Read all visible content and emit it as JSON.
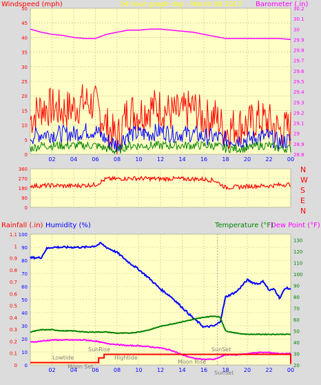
{
  "colors": {
    "background": "#dcdcdc",
    "plot_bg": "#ffffc6",
    "grid": "#b9b98c",
    "wind": "#ff0000",
    "wind_avg": "#0000ff",
    "wind_min": "#008000",
    "barometer": "#ff00ff",
    "direction": "#ff0000",
    "rainfall": "#ff0000",
    "humidity": "#0000ff",
    "temperature": "#008000",
    "dewpoint": "#ff00ff",
    "title": "#ffff00",
    "events": "#808080"
  },
  "chart_data": [
    {
      "type": "line",
      "title": "24 hour graph day : March 08 2017",
      "ylabel_left": "Windspeed (mph)",
      "ylabel_right": "Barometer (.in)",
      "x_ticks": [
        "02",
        "04",
        "06",
        "08",
        "10",
        "12",
        "14",
        "16",
        "18",
        "20",
        "22",
        "00"
      ],
      "yticks_left": [
        0,
        5,
        10,
        15,
        20,
        25,
        30,
        35,
        40,
        45,
        50
      ],
      "ylim_left": [
        0,
        50
      ],
      "yticks_right": [
        "28.8",
        "28.9",
        "29",
        "29.1",
        "29.2",
        "29.3",
        "29.4",
        "29.5",
        "29.6",
        "29.7",
        "29.8",
        "29.9",
        "30",
        "30.1",
        "30.2"
      ],
      "ylim_right": [
        28.8,
        30.2
      ],
      "grid": true,
      "series": [
        {
          "name": "wind_gust",
          "axis": "left",
          "x": [
            0,
            1,
            2,
            3,
            4,
            5,
            6,
            7,
            8,
            9,
            10,
            11,
            12,
            13,
            14,
            15,
            16,
            17,
            18,
            19,
            20,
            21,
            22,
            23,
            24
          ],
          "y": [
            12,
            16,
            16,
            15,
            16,
            18,
            17,
            10,
            5,
            15,
            14,
            16,
            16,
            14,
            14,
            16,
            12,
            13,
            8,
            10,
            10,
            12,
            11,
            8,
            9
          ]
        },
        {
          "name": "wind_avg",
          "axis": "left",
          "x": [
            0,
            1,
            2,
            3,
            4,
            5,
            6,
            7,
            8,
            9,
            10,
            11,
            12,
            13,
            14,
            15,
            16,
            17,
            18,
            19,
            20,
            21,
            22,
            23,
            24
          ],
          "y": [
            6,
            7,
            7,
            7,
            7,
            8,
            8,
            5,
            3,
            7,
            7,
            7,
            8,
            7,
            7,
            7,
            6,
            6,
            5,
            5,
            5,
            6,
            6,
            4,
            5
          ]
        },
        {
          "name": "wind_min",
          "axis": "left",
          "x": [
            0,
            1,
            2,
            3,
            4,
            5,
            6,
            7,
            8,
            9,
            10,
            11,
            12,
            13,
            14,
            15,
            16,
            17,
            18,
            19,
            20,
            21,
            22,
            23,
            24
          ],
          "y": [
            2,
            3,
            3,
            3,
            3,
            3,
            3,
            2,
            1,
            3,
            3,
            3,
            3,
            3,
            3,
            3,
            3,
            3,
            2,
            2,
            2,
            3,
            3,
            2,
            2
          ]
        },
        {
          "name": "barometer",
          "axis": "right",
          "x": [
            0,
            1,
            2,
            3,
            4,
            5,
            6,
            7,
            8,
            9,
            10,
            11,
            12,
            13,
            14,
            15,
            16,
            17,
            18,
            19,
            20,
            21,
            22,
            23,
            24
          ],
          "y": [
            30.0,
            29.97,
            29.95,
            29.94,
            29.92,
            29.91,
            29.91,
            29.95,
            29.97,
            29.99,
            29.99,
            30.0,
            30.0,
            29.99,
            29.98,
            29.97,
            29.95,
            29.93,
            29.91,
            29.91,
            29.91,
            29.91,
            29.91,
            29.91,
            29.9
          ]
        }
      ]
    },
    {
      "type": "line",
      "ylabel_right": [
        "N",
        "W",
        "S",
        "E",
        "N"
      ],
      "yticks": [
        0,
        90,
        180,
        270,
        360
      ],
      "ylim": [
        0,
        360
      ],
      "grid": true,
      "series": [
        {
          "name": "wind_direction",
          "x": [
            0,
            1,
            2,
            3,
            4,
            5,
            6,
            7,
            8,
            9,
            10,
            11,
            12,
            13,
            14,
            15,
            16,
            17,
            18,
            19,
            20,
            21,
            22,
            23,
            24
          ],
          "y": [
            200,
            200,
            205,
            200,
            200,
            205,
            210,
            265,
            265,
            270,
            270,
            268,
            265,
            268,
            265,
            265,
            262,
            250,
            185,
            190,
            195,
            200,
            200,
            210,
            215
          ]
        }
      ]
    },
    {
      "type": "line",
      "ylabel_left_1": "Rainfall (.in)",
      "ylabel_left_2": "Humidity (%)",
      "ylabel_right_1": "Temperature (°F)",
      "ylabel_right_2": "Dew Point (°F)",
      "yticks_humidity": [
        0,
        10,
        20,
        30,
        40,
        50,
        60,
        70,
        80,
        90,
        100
      ],
      "ylim_humidity": [
        0,
        100
      ],
      "yticks_rain": [
        "0",
        "0.1",
        "0.2",
        "0.3",
        "0.4",
        "0.5",
        "0.6",
        "0.7",
        "0.8",
        "0.9",
        "1",
        "1.1"
      ],
      "ylim_rain": [
        0,
        1.1
      ],
      "yticks_temp": [
        20,
        30,
        40,
        50,
        60,
        70,
        80,
        90,
        100,
        110,
        120,
        130
      ],
      "ylim_temp": [
        20,
        135
      ],
      "x_ticks": [
        "02",
        "04",
        "06",
        "08",
        "10",
        "12",
        "14",
        "16",
        "18",
        "20",
        "22",
        "00"
      ],
      "grid": true,
      "series": [
        {
          "name": "humidity",
          "axis": "humidity",
          "x": [
            0,
            1,
            1.5,
            2,
            3,
            4,
            5,
            6,
            6.5,
            7,
            8,
            9,
            10,
            11,
            12,
            13,
            14,
            15,
            16,
            17,
            17.5,
            18,
            19,
            20,
            20.5,
            21,
            21.5,
            22,
            22.5,
            23,
            23.5,
            24
          ],
          "y": [
            82,
            82,
            89,
            90,
            90,
            90,
            90,
            91,
            93,
            90,
            86,
            79,
            73,
            66,
            58,
            52,
            44,
            36,
            29,
            30,
            33,
            52,
            56,
            65,
            63,
            62,
            64,
            57,
            58,
            51,
            59,
            58
          ]
        },
        {
          "name": "temperature",
          "axis": "temp",
          "x": [
            0,
            1,
            2,
            3,
            4,
            5,
            6,
            7,
            8,
            9,
            10,
            11,
            12,
            13,
            14,
            15,
            16,
            17,
            17.5,
            18,
            19,
            20,
            21,
            22,
            23,
            24
          ],
          "y": [
            49,
            51,
            51,
            50,
            50,
            49,
            49,
            49,
            48,
            48,
            49,
            51,
            54,
            56,
            58,
            60,
            62,
            63,
            62,
            50,
            48,
            47,
            47,
            47,
            47,
            47
          ]
        },
        {
          "name": "dewpoint",
          "axis": "temp",
          "x": [
            0,
            1,
            2,
            3,
            4,
            5,
            6,
            7,
            8,
            9,
            10,
            11,
            12,
            13,
            14,
            15,
            16,
            17,
            18,
            19,
            20,
            21,
            22,
            23,
            24
          ],
          "y": [
            40,
            41,
            42,
            42,
            42,
            42,
            41,
            39,
            38,
            37,
            37,
            36,
            35,
            33,
            29,
            26,
            25,
            25,
            29,
            29,
            30,
            31,
            31,
            30,
            30
          ]
        },
        {
          "name": "rainfall",
          "axis": "rain",
          "x": [
            0,
            6.3,
            6.3,
            6.8,
            6.8,
            24,
            24
          ],
          "y": [
            0.02,
            0.02,
            0.06,
            0.06,
            0.09,
            0.09,
            0.01
          ]
        }
      ],
      "annotations": [
        "Lowtide",
        "SunRise",
        "Hightide",
        "Moon Set",
        "Moon Rise",
        "SunSet",
        "SunSet",
        "SunSet"
      ]
    }
  ]
}
